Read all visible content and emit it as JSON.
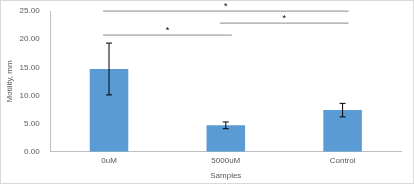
{
  "chart_data": {
    "type": "bar",
    "x_label": "Samples",
    "y_label": "Motility, mm",
    "categories": [
      "0uM",
      "5000uM",
      "Control"
    ],
    "values": [
      14.7,
      4.7,
      7.4
    ],
    "errors": [
      4.6,
      0.6,
      1.2
    ],
    "color": "#5b9bd5",
    "ylim": [
      0,
      25
    ],
    "yticks": [
      {
        "value": 0,
        "label": "0.00"
      },
      {
        "value": 5,
        "label": "5.00"
      },
      {
        "value": 10,
        "label": "10.00"
      },
      {
        "value": 15,
        "label": "15.00"
      },
      {
        "value": 20,
        "label": "20.00"
      },
      {
        "value": 25,
        "label": "25.00"
      }
    ],
    "grid": false,
    "annotations": [
      {
        "from": "0uM",
        "to": "5000uM",
        "text": "*"
      },
      {
        "from": "5000uM",
        "to": "Control",
        "text": "*"
      },
      {
        "from": "0uM",
        "to": "Control",
        "text": "*"
      }
    ]
  }
}
